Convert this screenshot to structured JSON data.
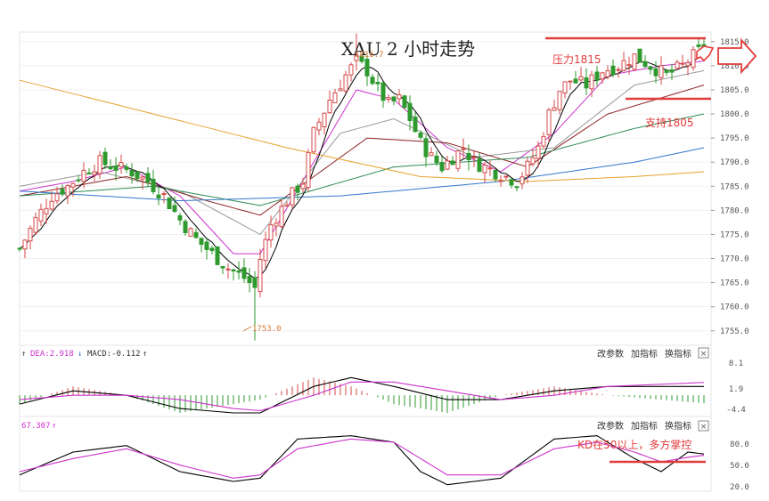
{
  "chart_title": "XAU 2 小时走势",
  "colors": {
    "up": "#d64a4a",
    "down": "#2e9a2e",
    "annot_red": "#e23b3b",
    "axis_text": "#555555",
    "ma5": "#000000",
    "ma10": "#cc33cc",
    "ma20": "#999999",
    "ma30": "#8b2222",
    "ma60": "#2e8b57",
    "ma120": "#3377cc",
    "ma250": "#e6a12c",
    "macd_dif": "#000000",
    "macd_dea": "#cc33cc",
    "kd_k": "#000000",
    "kd_d": "#cc33cc"
  },
  "annotations": {
    "resistance_label": "压力1815",
    "support_label": "支持1805",
    "low_label": "1753.0",
    "high_label": "1816.7",
    "kd_note": "KD在50以上，多方掌控"
  },
  "macd_panel": {
    "header": "DEA:2.918",
    "macd_label": "MACD:-0.112",
    "buttons": [
      "改参数",
      "加指标",
      "换指标"
    ],
    "close": "×",
    "y_ticks": [
      "8.1",
      "1.9",
      "-4.4"
    ]
  },
  "kd_panel": {
    "header": "67.307",
    "buttons": [
      "改参数",
      "加指标",
      "换指标"
    ],
    "close": "×",
    "y_ticks": [
      "80.0",
      "50.0",
      "20.0"
    ]
  },
  "chart_data": {
    "type": "candlestick",
    "title": "XAU 2 小时走势",
    "y_axis": {
      "ticks": [
        "1815.0",
        "1810.0",
        "1805.0",
        "1800.0",
        "1795.0",
        "1790.0",
        "1785.0",
        "1780.0",
        "1775.0",
        "1770.0",
        "1765.0",
        "1760.0",
        "1755.0"
      ],
      "range": [
        1752,
        1817
      ]
    },
    "levels": {
      "resistance": 1815,
      "support": 1805,
      "low": 1753.0,
      "high": 1816.7
    },
    "close_path": [
      [
        0,
        1772
      ],
      [
        3,
        1778
      ],
      [
        6,
        1783
      ],
      [
        9,
        1785
      ],
      [
        12,
        1788
      ],
      [
        15,
        1790
      ],
      [
        18,
        1789
      ],
      [
        21,
        1788
      ],
      [
        24,
        1786
      ],
      [
        27,
        1783
      ],
      [
        30,
        1778
      ],
      [
        33,
        1774
      ],
      [
        36,
        1771
      ],
      [
        39,
        1768
      ],
      [
        42,
        1766
      ],
      [
        44,
        1764
      ],
      [
        45,
        1770
      ],
      [
        47,
        1777
      ],
      [
        50,
        1782
      ],
      [
        53,
        1786
      ],
      [
        55,
        1796
      ],
      [
        58,
        1803
      ],
      [
        61,
        1808
      ],
      [
        63,
        1811
      ],
      [
        65,
        1809
      ],
      [
        67,
        1805
      ],
      [
        69,
        1802
      ],
      [
        71,
        1803
      ],
      [
        73,
        1799
      ],
      [
        75,
        1794
      ],
      [
        77,
        1791
      ],
      [
        79,
        1789
      ],
      [
        81,
        1791
      ],
      [
        83,
        1793
      ],
      [
        85,
        1790
      ],
      [
        87,
        1789
      ],
      [
        89,
        1788
      ],
      [
        91,
        1787
      ],
      [
        93,
        1786
      ],
      [
        95,
        1789
      ],
      [
        97,
        1793
      ],
      [
        99,
        1800
      ],
      [
        101,
        1805
      ],
      [
        103,
        1807
      ],
      [
        106,
        1806
      ],
      [
        109,
        1809
      ],
      [
        112,
        1810
      ],
      [
        115,
        1812
      ],
      [
        118,
        1810
      ],
      [
        121,
        1808
      ],
      [
        124,
        1810
      ],
      [
        127,
        1813
      ],
      [
        128,
        1814
      ]
    ],
    "moving_averages": [
      {
        "name": "MA10",
        "values": [
          [
            0,
            1784
          ],
          [
            10,
            1786
          ],
          [
            20,
            1789
          ],
          [
            30,
            1783
          ],
          [
            40,
            1771
          ],
          [
            45,
            1771
          ],
          [
            55,
            1790
          ],
          [
            63,
            1805
          ],
          [
            70,
            1803
          ],
          [
            80,
            1793
          ],
          [
            90,
            1788
          ],
          [
            100,
            1796
          ],
          [
            110,
            1808
          ],
          [
            120,
            1810
          ],
          [
            128,
            1811
          ]
        ]
      },
      {
        "name": "MA20",
        "values": [
          [
            0,
            1785
          ],
          [
            15,
            1788
          ],
          [
            30,
            1784
          ],
          [
            45,
            1775
          ],
          [
            60,
            1796
          ],
          [
            70,
            1799
          ],
          [
            85,
            1791
          ],
          [
            100,
            1793
          ],
          [
            115,
            1806
          ],
          [
            128,
            1809
          ]
        ]
      },
      {
        "name": "MA30",
        "values": [
          [
            0,
            1783
          ],
          [
            20,
            1787
          ],
          [
            35,
            1782
          ],
          [
            45,
            1779
          ],
          [
            65,
            1795
          ],
          [
            80,
            1794
          ],
          [
            95,
            1789
          ],
          [
            110,
            1800
          ],
          [
            128,
            1806
          ]
        ]
      },
      {
        "name": "MA60",
        "values": [
          [
            0,
            1783
          ],
          [
            25,
            1785
          ],
          [
            45,
            1781
          ],
          [
            70,
            1789
          ],
          [
            95,
            1791
          ],
          [
            115,
            1797
          ],
          [
            128,
            1800
          ]
        ]
      },
      {
        "name": "MA120",
        "values": [
          [
            0,
            1784
          ],
          [
            30,
            1782
          ],
          [
            60,
            1783
          ],
          [
            90,
            1786
          ],
          [
            115,
            1790
          ],
          [
            128,
            1793
          ]
        ]
      },
      {
        "name": "MA250",
        "values": [
          [
            0,
            1807
          ],
          [
            25,
            1800
          ],
          [
            50,
            1793
          ],
          [
            75,
            1787
          ],
          [
            95,
            1786
          ],
          [
            115,
            1787
          ],
          [
            128,
            1788
          ]
        ]
      }
    ],
    "macd_dif": [
      [
        0,
        -2
      ],
      [
        10,
        1
      ],
      [
        20,
        0
      ],
      [
        30,
        -3
      ],
      [
        40,
        -4
      ],
      [
        45,
        -4
      ],
      [
        55,
        2
      ],
      [
        62,
        4
      ],
      [
        70,
        2
      ],
      [
        80,
        -1
      ],
      [
        90,
        -1
      ],
      [
        100,
        1
      ],
      [
        110,
        2
      ],
      [
        120,
        2
      ],
      [
        128,
        2
      ]
    ],
    "macd_dea": [
      [
        0,
        -1
      ],
      [
        10,
        0
      ],
      [
        20,
        0
      ],
      [
        30,
        -1
      ],
      [
        40,
        -3
      ],
      [
        45,
        -3.5
      ],
      [
        55,
        0
      ],
      [
        62,
        3
      ],
      [
        70,
        3
      ],
      [
        80,
        1
      ],
      [
        90,
        -1
      ],
      [
        100,
        0
      ],
      [
        110,
        2
      ],
      [
        120,
        2.5
      ],
      [
        128,
        2.9
      ]
    ],
    "kd_k": [
      [
        0,
        35
      ],
      [
        10,
        70
      ],
      [
        20,
        80
      ],
      [
        30,
        40
      ],
      [
        40,
        25
      ],
      [
        45,
        30
      ],
      [
        52,
        90
      ],
      [
        62,
        95
      ],
      [
        70,
        85
      ],
      [
        75,
        40
      ],
      [
        80,
        20
      ],
      [
        90,
        30
      ],
      [
        100,
        90
      ],
      [
        108,
        95
      ],
      [
        115,
        60
      ],
      [
        120,
        40
      ],
      [
        125,
        70
      ],
      [
        128,
        67
      ]
    ],
    "kd_d": [
      [
        0,
        40
      ],
      [
        10,
        60
      ],
      [
        20,
        75
      ],
      [
        30,
        50
      ],
      [
        40,
        30
      ],
      [
        45,
        35
      ],
      [
        52,
        75
      ],
      [
        62,
        90
      ],
      [
        70,
        85
      ],
      [
        75,
        60
      ],
      [
        80,
        35
      ],
      [
        90,
        35
      ],
      [
        100,
        75
      ],
      [
        108,
        85
      ],
      [
        115,
        70
      ],
      [
        120,
        55
      ],
      [
        125,
        62
      ],
      [
        128,
        65
      ]
    ]
  }
}
